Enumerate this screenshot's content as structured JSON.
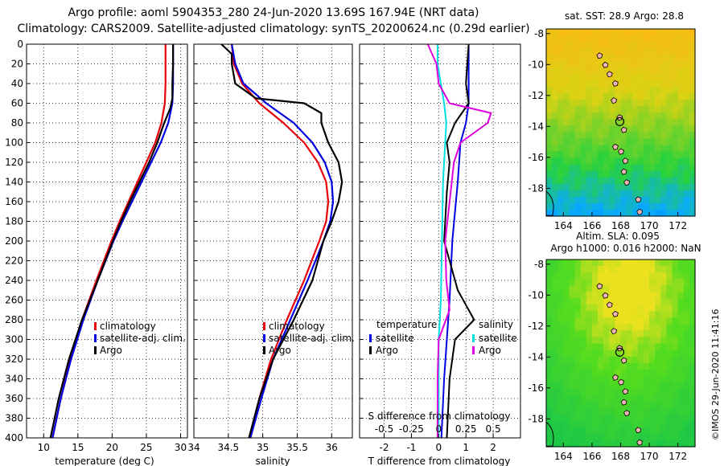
{
  "titles": {
    "line1": "Argo profile: aoml 5904353_280 24-Jun-2020 13.69S 167.94E (NRT data)",
    "line2": "Climatology: CARS2009. Satellite-adjusted climatology: synTS_20200624.nc (0.29d earlier)"
  },
  "side_label": "©IMOS 29-Jun-2020 11:41:16",
  "colors": {
    "climatology": "#e8000b",
    "satellite": "#0000e0",
    "argo": "#000000",
    "sal_clim": "#e000e0",
    "sal_sat": "#00e0e0"
  },
  "chart_data": [
    {
      "type": "line",
      "id": "temperature",
      "xlabel": "temperature (deg C)",
      "ylabel": "",
      "xlim": [
        7.5,
        31
      ],
      "ylim": [
        400,
        0
      ],
      "xticks": [
        10,
        15,
        20,
        25,
        30
      ],
      "yticks": [
        0,
        20,
        40,
        60,
        80,
        100,
        120,
        140,
        160,
        180,
        200,
        220,
        240,
        260,
        280,
        300,
        320,
        340,
        360,
        380,
        400
      ],
      "legend": [
        "climatology",
        "satellite-adj. clim.",
        "Argo"
      ],
      "series": [
        {
          "name": "climatology",
          "depth": [
            0,
            20,
            40,
            60,
            80,
            100,
            120,
            140,
            160,
            180,
            200,
            240,
            280,
            320,
            360,
            400
          ],
          "values": [
            27.8,
            27.8,
            27.8,
            27.7,
            27.2,
            26.3,
            25,
            23.7,
            22.4,
            21.1,
            19.9,
            17.7,
            15.6,
            13.9,
            12.5,
            11.3
          ]
        },
        {
          "name": "satellite-adj. clim.",
          "depth": [
            0,
            20,
            40,
            60,
            80,
            100,
            120,
            140,
            160,
            180,
            200,
            240,
            280,
            320,
            360,
            400
          ],
          "values": [
            28.9,
            28.9,
            28.9,
            28.8,
            28.2,
            27.1,
            25.7,
            24.3,
            22.9,
            21.5,
            20.2,
            17.9,
            15.8,
            14.0,
            12.5,
            11.3
          ]
        },
        {
          "name": "Argo",
          "depth": [
            0,
            20,
            40,
            55,
            65,
            80,
            100,
            120,
            140,
            160,
            180,
            200,
            240,
            280,
            320,
            360,
            400
          ],
          "values": [
            28.9,
            28.9,
            28.8,
            28.8,
            28.5,
            27.6,
            26.6,
            25.4,
            24.0,
            22.6,
            21.3,
            20.1,
            17.9,
            15.6,
            13.7,
            12.2,
            11.0
          ]
        }
      ]
    },
    {
      "type": "line",
      "id": "salinity",
      "xlabel": "salinity",
      "ylabel": "",
      "xlim": [
        34,
        36.3
      ],
      "ylim": [
        400,
        0
      ],
      "xticks": [
        34,
        34.5,
        35,
        35.5,
        36
      ],
      "xtick_labels": [
        "34",
        "34.5",
        "35",
        "35.5",
        "36"
      ],
      "legend": [
        "climatology",
        "satellite-adj. clim.",
        "Argo"
      ],
      "series": [
        {
          "name": "climatology",
          "depth": [
            0,
            20,
            40,
            60,
            80,
            100,
            120,
            140,
            160,
            180,
            200,
            240,
            280,
            320,
            360,
            400
          ],
          "values": [
            34.55,
            34.58,
            34.7,
            34.95,
            35.3,
            35.6,
            35.8,
            35.92,
            35.95,
            35.92,
            35.82,
            35.6,
            35.35,
            35.12,
            34.95,
            34.82
          ]
        },
        {
          "name": "satellite-adj. clim.",
          "depth": [
            0,
            20,
            40,
            60,
            80,
            100,
            120,
            140,
            160,
            180,
            200,
            240,
            280,
            320,
            360,
            400
          ],
          "values": [
            34.55,
            34.6,
            34.72,
            35.05,
            35.45,
            35.72,
            35.9,
            36.0,
            36.02,
            35.98,
            35.88,
            35.65,
            35.4,
            35.15,
            34.98,
            34.82
          ]
        },
        {
          "name": "Argo",
          "depth": [
            0,
            10,
            20,
            40,
            55,
            60,
            70,
            80,
            100,
            120,
            140,
            160,
            180,
            200,
            240,
            280,
            320,
            360,
            400
          ],
          "values": [
            34.4,
            34.55,
            34.55,
            34.6,
            34.9,
            35.6,
            35.85,
            35.85,
            35.95,
            36.1,
            36.15,
            36.1,
            36.0,
            35.88,
            35.72,
            35.45,
            35.15,
            34.95,
            34.8
          ]
        }
      ]
    },
    {
      "type": "line",
      "id": "differences",
      "xlabel": "T difference from climatology",
      "top_xlabel": "S difference from climatology",
      "xlim": [
        -2.9,
        3.0
      ],
      "ylim": [
        400,
        0
      ],
      "xticks": [
        -2,
        -1,
        0,
        1,
        2
      ],
      "top_xticks": [
        -0.5,
        -0.25,
        0,
        0.25,
        0.5
      ],
      "top_xtick_labels": [
        "-0.5",
        "-0.25",
        "0",
        "0.25",
        "0.5"
      ],
      "legend_headers": [
        "temperature",
        "salinity"
      ],
      "legend": [
        "satellite",
        "Argo",
        "satellite",
        "Argo"
      ],
      "series": [
        {
          "name": "T satellite",
          "depth": [
            0,
            40,
            60,
            80,
            100,
            140,
            200,
            260,
            300,
            340,
            400
          ],
          "values": [
            1.1,
            1.1,
            1.1,
            1.0,
            0.8,
            0.7,
            0.5,
            0.4,
            0.3,
            0.2,
            0.1
          ]
        },
        {
          "name": "T Argo",
          "depth": [
            0,
            40,
            60,
            80,
            100,
            120,
            150,
            200,
            250,
            280,
            300,
            340,
            400
          ],
          "values": [
            1.1,
            1.0,
            1.1,
            0.6,
            0.3,
            0.4,
            0.3,
            0.2,
            0.7,
            1.3,
            0.6,
            0.4,
            0.3
          ]
        },
        {
          "name": "S satellite",
          "depth": [
            0,
            20,
            40,
            60,
            80,
            100,
            140,
            200,
            260,
            300,
            340,
            400
          ],
          "values": [
            -0.01,
            -0.01,
            0.02,
            0.05,
            0.07,
            0.06,
            0.04,
            0.03,
            0.02,
            0.0,
            0.0,
            0.0
          ]
        },
        {
          "name": "S Argo",
          "depth": [
            0,
            20,
            40,
            60,
            70,
            80,
            100,
            120,
            160,
            200,
            240,
            270,
            300,
            340,
            400
          ],
          "values": [
            -0.1,
            -0.02,
            0.0,
            0.1,
            0.48,
            0.45,
            0.2,
            0.14,
            0.1,
            0.06,
            0.07,
            0.1,
            0.0,
            -0.01,
            -0.01
          ]
        }
      ]
    },
    {
      "type": "heatmap",
      "id": "sst-map",
      "title": "sat. SST: 28.9 Argo: 28.8",
      "xticks": [
        164,
        166,
        168,
        170,
        172
      ],
      "yticks": [
        -8,
        -10,
        -12,
        -14,
        -16,
        -18
      ],
      "float_position": [
        167.94,
        -13.69
      ]
    },
    {
      "type": "heatmap",
      "id": "sla-map",
      "title": "Altim. SLA: 0.095",
      "subtitle": "Argo h1000: 0.016 h2000: NaN",
      "xticks": [
        164,
        166,
        168,
        170,
        172
      ],
      "yticks": [
        -8,
        -10,
        -12,
        -14,
        -16,
        -18
      ],
      "float_position": [
        167.94,
        -13.69
      ]
    }
  ]
}
